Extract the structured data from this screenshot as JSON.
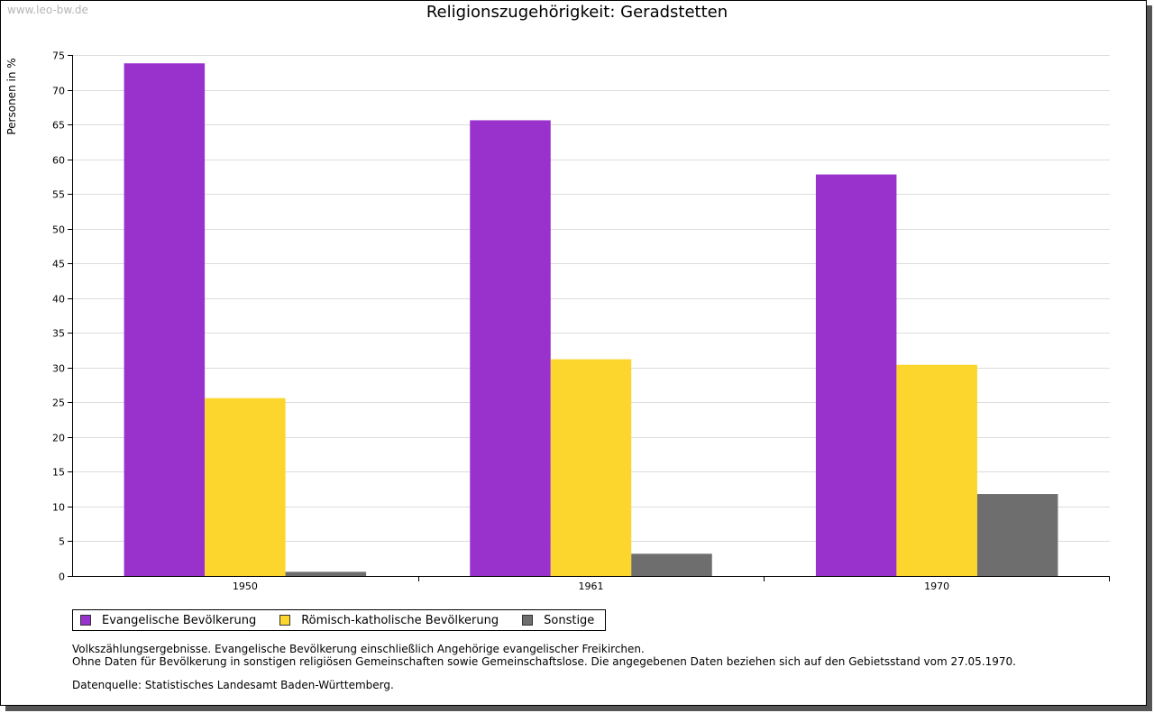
{
  "watermark": "www.leo-bw.de",
  "chart_data": {
    "type": "bar",
    "title": "Religionszugehörigkeit: Geradstetten",
    "xlabel": "",
    "ylabel": "Personen in %",
    "ylim": [
      0,
      75
    ],
    "ytick_step": 5,
    "grid": true,
    "categories": [
      "1950",
      "1961",
      "1970"
    ],
    "series": [
      {
        "name": "Evangelische Bevölkerung",
        "color": "#9932cc",
        "values": [
          73.8,
          65.6,
          57.8
        ]
      },
      {
        "name": "Römisch-katholische Bevölkerung",
        "color": "#fcd62c",
        "values": [
          25.6,
          31.2,
          30.4
        ]
      },
      {
        "name": "Sonstige",
        "color": "#6e6e6e",
        "values": [
          0.6,
          3.2,
          11.8
        ]
      }
    ],
    "legend_position": "bottom-left"
  },
  "notes": [
    "Volkszählungsergebnisse. Evangelische Bevölkerung einschließlich Angehörige evangelischer Freikirchen.",
    "Ohne Daten für Bevölkerung in sonstigen religiösen Gemeinschaften sowie Gemeinschaftslose. Die angegebenen Daten beziehen sich auf den Gebietsstand vom 27.05.1970."
  ],
  "source": "Datenquelle: Statistisches Landesamt Baden-Württemberg."
}
